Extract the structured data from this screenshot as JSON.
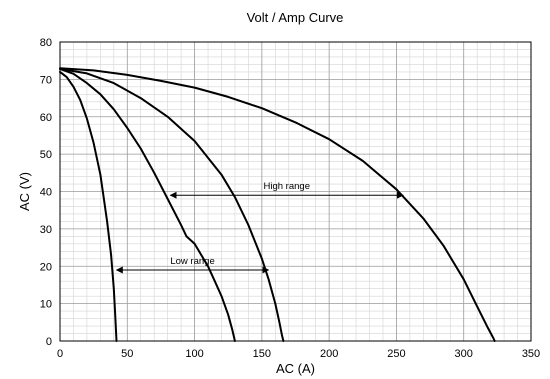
{
  "chart_data": {
    "type": "line",
    "title": "Volt / Amp Curve",
    "xlabel": "AC (A)",
    "ylabel": "AC (V)",
    "xlim": [
      0,
      350
    ],
    "ylim": [
      0,
      80
    ],
    "x_ticks": [
      0,
      50,
      100,
      150,
      200,
      250,
      300,
      350
    ],
    "y_ticks": [
      0,
      10,
      20,
      30,
      40,
      50,
      60,
      70,
      80
    ],
    "grid": {
      "major": true,
      "minor": true,
      "minor_x_step": 10,
      "minor_y_step": 2
    },
    "series_color": "#000000",
    "series": [
      {
        "x": [
          0,
          5,
          10,
          15,
          20,
          25,
          30,
          35,
          38,
          40,
          41,
          42
        ],
        "y": [
          72,
          70.6,
          68,
          64.5,
          59.5,
          53,
          44.5,
          32,
          23,
          14,
          7,
          0
        ]
      },
      {
        "x": [
          0,
          10,
          20,
          30,
          40,
          50,
          60,
          70,
          80,
          90,
          94,
          100,
          110,
          115,
          120,
          125,
          128,
          129,
          130
        ],
        "y": [
          72.8,
          71.5,
          69,
          66,
          62,
          57,
          51.5,
          45,
          38,
          31,
          28,
          26,
          20,
          16,
          12,
          7,
          3,
          1.5,
          0
        ]
      },
      {
        "x": [
          0,
          20,
          40,
          60,
          80,
          100,
          120,
          130,
          140,
          150,
          155,
          160,
          163,
          165,
          166
        ],
        "y": [
          72.8,
          71.6,
          69,
          65,
          60,
          53.5,
          44.5,
          38.5,
          31,
          22,
          16.5,
          10,
          5,
          1.5,
          0
        ]
      },
      {
        "x": [
          0,
          25,
          50,
          75,
          100,
          125,
          150,
          175,
          200,
          225,
          250,
          270,
          285,
          300,
          310,
          318,
          322,
          323
        ],
        "y": [
          73,
          72.4,
          71.2,
          69.6,
          67.8,
          65.3,
          62.3,
          58.5,
          54,
          48.2,
          40.6,
          32.8,
          25.5,
          16.5,
          9.2,
          3.5,
          0.8,
          0
        ]
      }
    ],
    "annotations": [
      {
        "text": "Low range",
        "arrow_x": [
          42,
          155
        ],
        "arrow_y": 19
      },
      {
        "text": "High range",
        "arrow_x": [
          82,
          255
        ],
        "arrow_y": 39
      }
    ]
  }
}
